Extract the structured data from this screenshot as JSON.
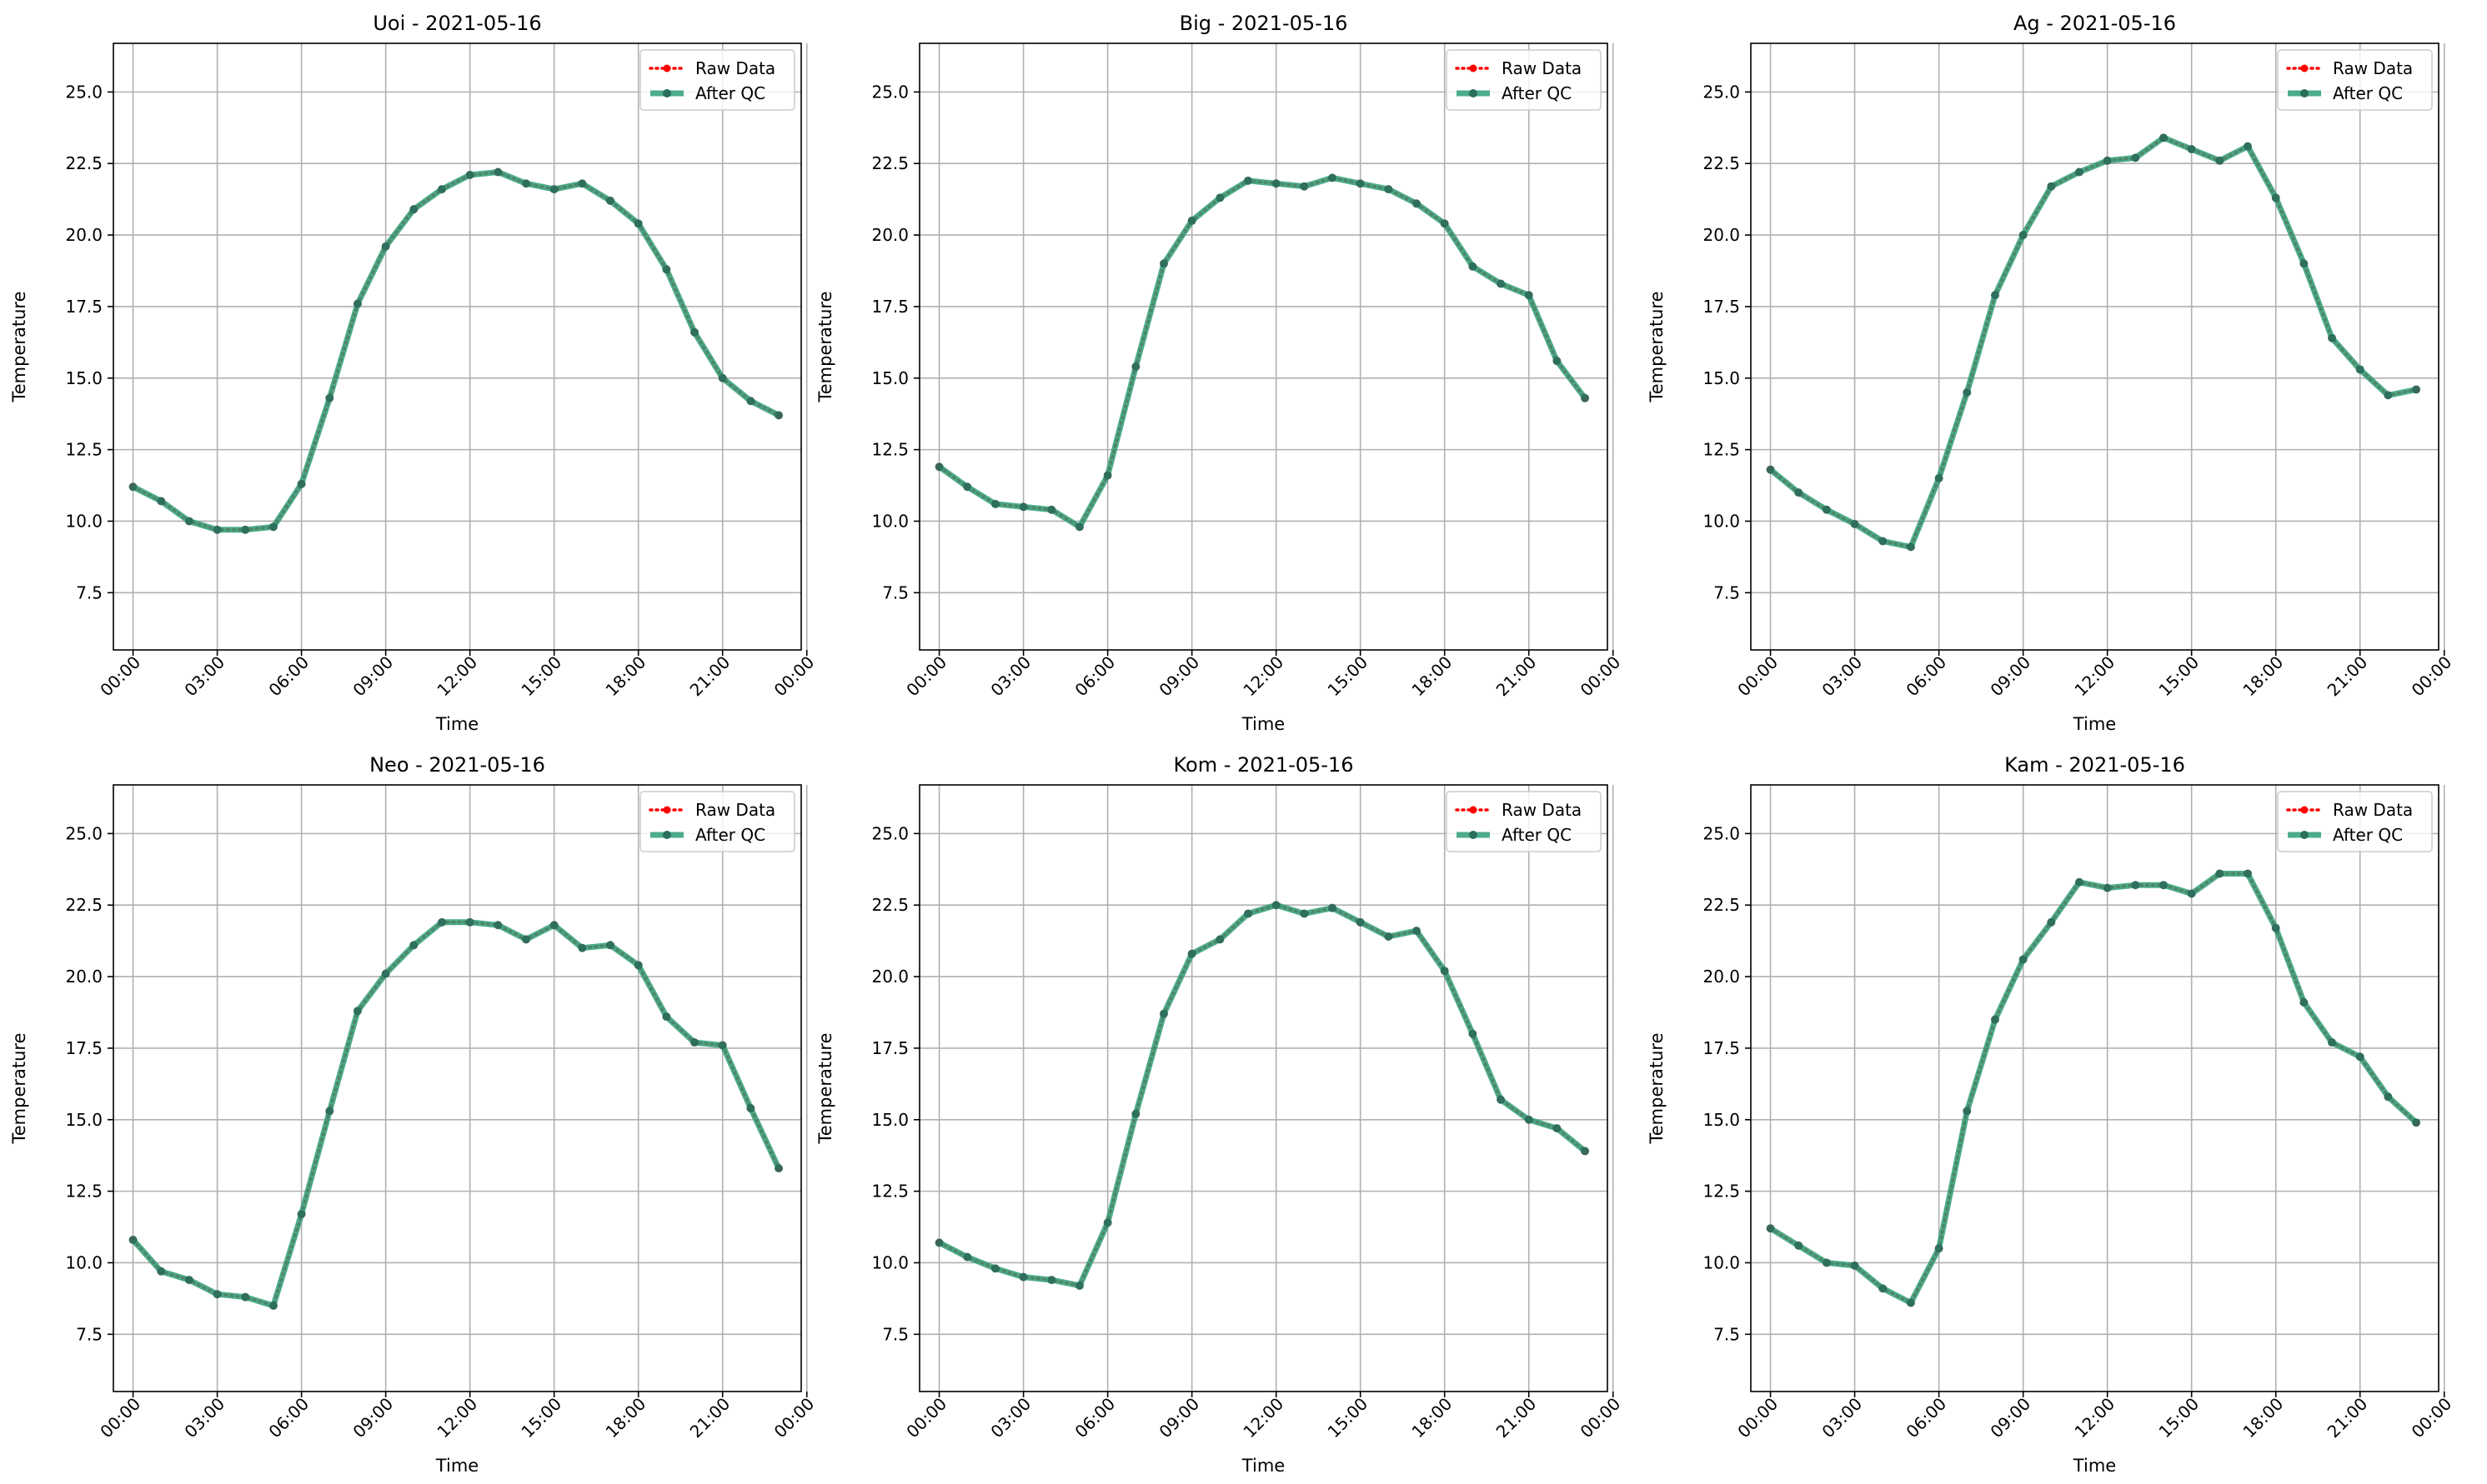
{
  "figure": {
    "legend_entries": [
      "Raw Data",
      "After QC"
    ],
    "colors": {
      "raw": "#ff0000",
      "qc_line": "#2e9e78",
      "qc_marker": "#2a6e5c",
      "grid": "#b0b0b0",
      "frame": "#000000"
    }
  },
  "chart_data": [
    {
      "type": "line",
      "title": "Uoi - 2021-05-16",
      "xlabel": "Time",
      "ylabel": "Temperature",
      "ylim": [
        5.5,
        26.7
      ],
      "xlim": [
        -0.7,
        23.8
      ],
      "yticks": [
        7.5,
        10.0,
        12.5,
        15.0,
        17.5,
        20.0,
        22.5,
        25.0
      ],
      "xticks": [
        "00:00",
        "03:00",
        "06:00",
        "09:00",
        "12:00",
        "15:00",
        "18:00",
        "21:00",
        "00:00"
      ],
      "grid": true,
      "legend": "upper right",
      "x": [
        "00:00",
        "01:00",
        "02:00",
        "03:00",
        "04:00",
        "05:00",
        "06:00",
        "07:00",
        "08:00",
        "09:00",
        "10:00",
        "11:00",
        "12:00",
        "13:00",
        "14:00",
        "15:00",
        "16:00",
        "17:00",
        "18:00",
        "19:00",
        "20:00",
        "21:00",
        "22:00",
        "23:00"
      ],
      "series": [
        {
          "name": "Raw Data",
          "values": [
            11.2,
            10.7,
            10.0,
            9.7,
            9.7,
            9.8,
            11.3,
            14.3,
            17.6,
            19.6,
            20.9,
            21.6,
            22.1,
            22.2,
            21.8,
            21.6,
            21.8,
            21.2,
            20.4,
            18.8,
            16.6,
            15.0,
            14.2,
            13.7
          ]
        },
        {
          "name": "After QC",
          "values": [
            11.2,
            10.7,
            10.0,
            9.7,
            9.7,
            9.8,
            11.3,
            14.3,
            17.6,
            19.6,
            20.9,
            21.6,
            22.1,
            22.2,
            21.8,
            21.6,
            21.8,
            21.2,
            20.4,
            18.8,
            16.6,
            15.0,
            14.2,
            13.7
          ]
        }
      ]
    },
    {
      "type": "line",
      "title": "Big - 2021-05-16",
      "xlabel": "Time",
      "ylabel": "Temperature",
      "ylim": [
        5.5,
        26.7
      ],
      "xlim": [
        -0.7,
        23.8
      ],
      "yticks": [
        7.5,
        10.0,
        12.5,
        15.0,
        17.5,
        20.0,
        22.5,
        25.0
      ],
      "xticks": [
        "00:00",
        "03:00",
        "06:00",
        "09:00",
        "12:00",
        "15:00",
        "18:00",
        "21:00",
        "00:00"
      ],
      "grid": true,
      "legend": "upper right",
      "x": [
        "00:00",
        "01:00",
        "02:00",
        "03:00",
        "04:00",
        "05:00",
        "06:00",
        "07:00",
        "08:00",
        "09:00",
        "10:00",
        "11:00",
        "12:00",
        "13:00",
        "14:00",
        "15:00",
        "16:00",
        "17:00",
        "18:00",
        "19:00",
        "20:00",
        "21:00",
        "22:00",
        "23:00"
      ],
      "series": [
        {
          "name": "Raw Data",
          "values": [
            11.9,
            11.2,
            10.6,
            10.5,
            10.4,
            9.8,
            11.6,
            15.4,
            19.0,
            20.5,
            21.3,
            21.9,
            21.8,
            21.7,
            22.0,
            21.8,
            21.6,
            21.1,
            20.4,
            18.9,
            18.3,
            17.9,
            15.6,
            14.3
          ]
        },
        {
          "name": "After QC",
          "values": [
            11.9,
            11.2,
            10.6,
            10.5,
            10.4,
            9.8,
            11.6,
            15.4,
            19.0,
            20.5,
            21.3,
            21.9,
            21.8,
            21.7,
            22.0,
            21.8,
            21.6,
            21.1,
            20.4,
            18.9,
            18.3,
            17.9,
            15.6,
            14.3
          ]
        }
      ]
    },
    {
      "type": "line",
      "title": "Ag - 2021-05-16",
      "xlabel": "Time",
      "ylabel": "Temperature",
      "ylim": [
        5.5,
        26.7
      ],
      "xlim": [
        -0.7,
        23.8
      ],
      "yticks": [
        7.5,
        10.0,
        12.5,
        15.0,
        17.5,
        20.0,
        22.5,
        25.0
      ],
      "xticks": [
        "00:00",
        "03:00",
        "06:00",
        "09:00",
        "12:00",
        "15:00",
        "18:00",
        "21:00",
        "00:00"
      ],
      "grid": true,
      "legend": "upper right",
      "x": [
        "00:00",
        "01:00",
        "02:00",
        "03:00",
        "04:00",
        "05:00",
        "06:00",
        "07:00",
        "08:00",
        "09:00",
        "10:00",
        "11:00",
        "12:00",
        "13:00",
        "14:00",
        "15:00",
        "16:00",
        "17:00",
        "18:00",
        "19:00",
        "20:00",
        "21:00",
        "22:00",
        "23:00"
      ],
      "series": [
        {
          "name": "Raw Data",
          "values": [
            11.8,
            11.0,
            10.4,
            9.9,
            9.3,
            9.1,
            11.5,
            14.5,
            17.9,
            20.0,
            21.7,
            22.2,
            22.6,
            22.7,
            23.4,
            23.0,
            22.6,
            23.1,
            21.3,
            19.0,
            16.4,
            15.3,
            14.4,
            14.6
          ]
        },
        {
          "name": "After QC",
          "values": [
            11.8,
            11.0,
            10.4,
            9.9,
            9.3,
            9.1,
            11.5,
            14.5,
            17.9,
            20.0,
            21.7,
            22.2,
            22.6,
            22.7,
            23.4,
            23.0,
            22.6,
            23.1,
            21.3,
            19.0,
            16.4,
            15.3,
            14.4,
            14.6
          ]
        }
      ]
    },
    {
      "type": "line",
      "title": "Neo - 2021-05-16",
      "xlabel": "Time",
      "ylabel": "Temperature",
      "ylim": [
        5.5,
        26.7
      ],
      "xlim": [
        -0.7,
        23.8
      ],
      "yticks": [
        7.5,
        10.0,
        12.5,
        15.0,
        17.5,
        20.0,
        22.5,
        25.0
      ],
      "xticks": [
        "00:00",
        "03:00",
        "06:00",
        "09:00",
        "12:00",
        "15:00",
        "18:00",
        "21:00",
        "00:00"
      ],
      "grid": true,
      "legend": "upper right",
      "x": [
        "00:00",
        "01:00",
        "02:00",
        "03:00",
        "04:00",
        "05:00",
        "06:00",
        "07:00",
        "08:00",
        "09:00",
        "10:00",
        "11:00",
        "12:00",
        "13:00",
        "14:00",
        "15:00",
        "16:00",
        "17:00",
        "18:00",
        "19:00",
        "20:00",
        "21:00",
        "22:00",
        "23:00"
      ],
      "series": [
        {
          "name": "Raw Data",
          "values": [
            10.8,
            9.7,
            9.4,
            8.9,
            8.8,
            8.5,
            11.7,
            15.3,
            18.8,
            20.1,
            21.1,
            21.9,
            21.9,
            21.8,
            21.3,
            21.8,
            21.0,
            21.1,
            20.4,
            18.6,
            17.7,
            17.6,
            15.4,
            13.3
          ]
        },
        {
          "name": "After QC",
          "values": [
            10.8,
            9.7,
            9.4,
            8.9,
            8.8,
            8.5,
            11.7,
            15.3,
            18.8,
            20.1,
            21.1,
            21.9,
            21.9,
            21.8,
            21.3,
            21.8,
            21.0,
            21.1,
            20.4,
            18.6,
            17.7,
            17.6,
            15.4,
            13.3
          ]
        }
      ]
    },
    {
      "type": "line",
      "title": "Kom - 2021-05-16",
      "xlabel": "Time",
      "ylabel": "Temperature",
      "ylim": [
        5.5,
        26.7
      ],
      "xlim": [
        -0.7,
        23.8
      ],
      "yticks": [
        7.5,
        10.0,
        12.5,
        15.0,
        17.5,
        20.0,
        22.5,
        25.0
      ],
      "xticks": [
        "00:00",
        "03:00",
        "06:00",
        "09:00",
        "12:00",
        "15:00",
        "18:00",
        "21:00",
        "00:00"
      ],
      "grid": true,
      "legend": "upper right",
      "x": [
        "00:00",
        "01:00",
        "02:00",
        "03:00",
        "04:00",
        "05:00",
        "06:00",
        "07:00",
        "08:00",
        "09:00",
        "10:00",
        "11:00",
        "12:00",
        "13:00",
        "14:00",
        "15:00",
        "16:00",
        "17:00",
        "18:00",
        "19:00",
        "20:00",
        "21:00",
        "22:00",
        "23:00"
      ],
      "series": [
        {
          "name": "Raw Data",
          "values": [
            10.7,
            10.2,
            9.8,
            9.5,
            9.4,
            9.2,
            11.4,
            15.2,
            18.7,
            20.8,
            21.3,
            22.2,
            22.5,
            22.2,
            22.4,
            21.9,
            21.4,
            21.6,
            20.2,
            18.0,
            15.7,
            15.0,
            14.7,
            13.9
          ]
        },
        {
          "name": "After QC",
          "values": [
            10.7,
            10.2,
            9.8,
            9.5,
            9.4,
            9.2,
            11.4,
            15.2,
            18.7,
            20.8,
            21.3,
            22.2,
            22.5,
            22.2,
            22.4,
            21.9,
            21.4,
            21.6,
            20.2,
            18.0,
            15.7,
            15.0,
            14.7,
            13.9
          ]
        }
      ]
    },
    {
      "type": "line",
      "title": "Kam - 2021-05-16",
      "xlabel": "Time",
      "ylabel": "Temperature",
      "ylim": [
        5.5,
        26.7
      ],
      "xlim": [
        -0.7,
        23.8
      ],
      "yticks": [
        7.5,
        10.0,
        12.5,
        15.0,
        17.5,
        20.0,
        22.5,
        25.0
      ],
      "xticks": [
        "00:00",
        "03:00",
        "06:00",
        "09:00",
        "12:00",
        "15:00",
        "18:00",
        "21:00",
        "00:00"
      ],
      "grid": true,
      "legend": "upper right",
      "x": [
        "00:00",
        "01:00",
        "02:00",
        "03:00",
        "04:00",
        "05:00",
        "06:00",
        "07:00",
        "08:00",
        "09:00",
        "10:00",
        "11:00",
        "12:00",
        "13:00",
        "14:00",
        "15:00",
        "16:00",
        "17:00",
        "18:00",
        "19:00",
        "20:00",
        "21:00",
        "22:00",
        "23:00"
      ],
      "series": [
        {
          "name": "Raw Data",
          "values": [
            11.2,
            10.6,
            10.0,
            9.9,
            9.1,
            8.6,
            10.5,
            15.3,
            18.5,
            20.6,
            21.9,
            23.3,
            23.1,
            23.2,
            23.2,
            22.9,
            23.6,
            23.6,
            21.7,
            19.1,
            17.7,
            17.2,
            15.8,
            14.9
          ]
        },
        {
          "name": "After QC",
          "values": [
            11.2,
            10.6,
            10.0,
            9.9,
            9.1,
            8.6,
            10.5,
            15.3,
            18.5,
            20.6,
            21.9,
            23.3,
            23.1,
            23.2,
            23.2,
            22.9,
            23.6,
            23.6,
            21.7,
            19.1,
            17.7,
            17.2,
            15.8,
            14.9
          ]
        }
      ]
    }
  ]
}
